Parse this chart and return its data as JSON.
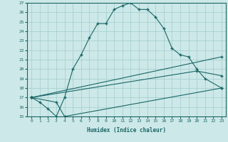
{
  "xlabel": "Humidex (Indice chaleur)",
  "xlim": [
    -0.5,
    23.5
  ],
  "ylim": [
    15,
    27
  ],
  "xticks": [
    0,
    1,
    2,
    3,
    4,
    5,
    6,
    7,
    8,
    9,
    10,
    11,
    12,
    13,
    14,
    15,
    16,
    17,
    18,
    19,
    20,
    21,
    22,
    23
  ],
  "yticks": [
    15,
    16,
    17,
    18,
    19,
    20,
    21,
    22,
    23,
    24,
    25,
    26,
    27
  ],
  "bg_color": "#cde8e8",
  "grid_color": "#a0cccc",
  "line_color": "#1a6666",
  "line1_x": [
    0,
    1,
    2,
    3,
    4,
    5,
    6,
    7,
    8,
    9,
    10,
    11,
    12,
    13,
    14,
    15,
    16,
    17,
    18,
    19,
    20,
    21,
    23
  ],
  "line1_y": [
    17.0,
    16.5,
    15.8,
    15.0,
    17.0,
    20.0,
    21.5,
    23.3,
    24.8,
    24.8,
    26.3,
    26.7,
    27.0,
    26.3,
    26.3,
    25.5,
    24.3,
    22.2,
    21.5,
    21.3,
    20.0,
    19.0,
    18.0
  ],
  "line2_x": [
    0,
    23
  ],
  "line2_y": [
    17.0,
    21.3
  ],
  "line3_x": [
    0,
    20,
    23
  ],
  "line3_y": [
    17.0,
    19.8,
    19.3
  ],
  "line4_x": [
    0,
    3,
    4,
    23
  ],
  "line4_y": [
    17.0,
    16.5,
    15.0,
    18.0
  ]
}
